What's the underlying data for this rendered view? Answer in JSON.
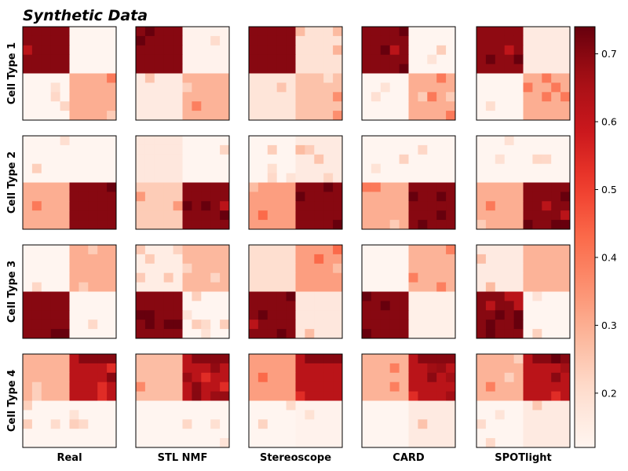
{
  "chart_data": {
    "type": "heatmap",
    "title": "Synthetic Data",
    "columns": [
      "Real",
      "STL NMF",
      "Stereoscope",
      "CARD",
      "SPOTlight"
    ],
    "rows": [
      "Cell Type 1",
      "Cell Type 2",
      "Cell Type 3",
      "Cell Type 4"
    ],
    "grid_size": 10,
    "colormap": "Reds",
    "colorbar": {
      "min": 0.12,
      "max": 0.74,
      "ticks": [
        "0.2",
        "0.3",
        "0.4",
        "0.5",
        "0.6",
        "0.7"
      ]
    },
    "block_means": [
      [
        {
          "tl": 0.7,
          "tr": 0.12,
          "bl": 0.12,
          "br": 0.3
        },
        {
          "tl": 0.7,
          "tr": 0.13,
          "bl": 0.16,
          "br": 0.29
        },
        {
          "tl": 0.7,
          "tr": 0.19,
          "bl": 0.18,
          "br": 0.26
        },
        {
          "tl": 0.7,
          "tr": 0.12,
          "bl": 0.12,
          "br": 0.3
        },
        {
          "tl": 0.69,
          "tr": 0.16,
          "bl": 0.12,
          "br": 0.3
        }
      ],
      [
        {
          "tl": 0.12,
          "tr": 0.12,
          "bl": 0.3,
          "br": 0.7
        },
        {
          "tl": 0.17,
          "tr": 0.12,
          "bl": 0.24,
          "br": 0.7
        },
        {
          "tl": 0.12,
          "tr": 0.16,
          "bl": 0.33,
          "br": 0.7
        },
        {
          "tl": 0.12,
          "tr": 0.12,
          "bl": 0.3,
          "br": 0.7
        },
        {
          "tl": 0.12,
          "tr": 0.12,
          "bl": 0.3,
          "br": 0.7
        }
      ],
      [
        {
          "tl": 0.12,
          "tr": 0.3,
          "bl": 0.7,
          "br": 0.12
        },
        {
          "tl": 0.15,
          "tr": 0.28,
          "bl": 0.7,
          "br": 0.12
        },
        {
          "tl": 0.2,
          "tr": 0.33,
          "bl": 0.7,
          "br": 0.17
        },
        {
          "tl": 0.12,
          "tr": 0.29,
          "bl": 0.7,
          "br": 0.14
        },
        {
          "tl": 0.16,
          "tr": 0.29,
          "bl": 0.7,
          "br": 0.12
        }
      ],
      [
        {
          "tl": 0.29,
          "tr": 0.62,
          "bl": 0.12,
          "br": 0.12
        },
        {
          "tl": 0.27,
          "tr": 0.62,
          "bl": 0.12,
          "br": 0.12
        },
        {
          "tl": 0.33,
          "tr": 0.62,
          "bl": 0.12,
          "br": 0.13
        },
        {
          "tl": 0.29,
          "tr": 0.62,
          "bl": 0.12,
          "br": 0.16
        },
        {
          "tl": 0.29,
          "tr": 0.62,
          "bl": 0.12,
          "br": 0.16
        }
      ]
    ],
    "top_strip": [
      [
        0,
        0,
        0,
        0,
        0
      ],
      [
        0,
        0,
        0,
        0,
        0
      ],
      [
        0,
        0,
        0,
        0,
        0
      ],
      [
        0.7,
        0.7,
        0.7,
        0.7,
        0.7
      ]
    ]
  }
}
